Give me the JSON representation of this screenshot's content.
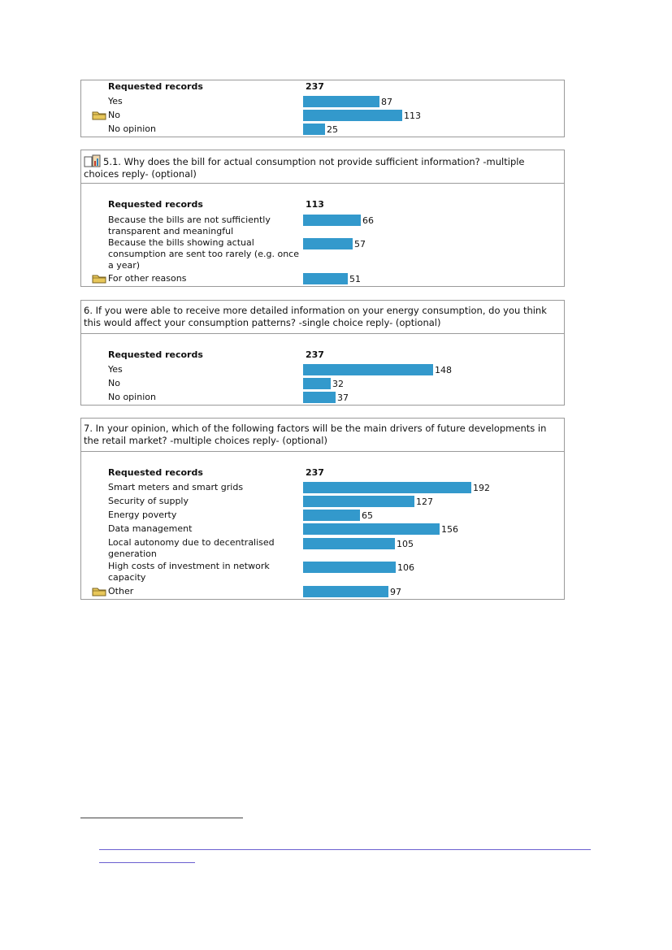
{
  "sections": [
    {
      "question": "",
      "requested_label": "Requested records",
      "requested_value": "237",
      "options": [
        {
          "label": "Yes",
          "value": "87",
          "count": 87
        },
        {
          "label": "No",
          "value": "113",
          "count": 113,
          "folder": true
        },
        {
          "label": "No opinion",
          "value": "25",
          "count": 25
        }
      ]
    },
    {
      "question": "5.1. Why does the bill for actual consumption not provide sufficient information? -multiple choices reply- (optional)",
      "requested_label": "Requested records",
      "requested_value": "113",
      "options": [
        {
          "label": "Because the bills are not sufficiently transparent and meaningful",
          "value": "66",
          "count": 66
        },
        {
          "label": "Because the bills showing actual consumption are sent too rarely (e.g. once a year)",
          "value": "57",
          "count": 57
        },
        {
          "label": "For other reasons",
          "value": "51",
          "count": 51,
          "folder": true
        }
      ]
    },
    {
      "question": "6. If you were able to receive more detailed information on your energy consumption, do you think this would affect your consumption patterns? -single choice reply- (optional)",
      "requested_label": "Requested records",
      "requested_value": "237",
      "options": [
        {
          "label": "Yes",
          "value": "148",
          "count": 148
        },
        {
          "label": "No",
          "value": "32",
          "count": 32
        },
        {
          "label": "No opinion",
          "value": "37",
          "count": 37
        }
      ]
    },
    {
      "question": "7. In your opinion, which of the following factors will be the main drivers of future developments in the retail market? -multiple choices reply- (optional)",
      "requested_label": "Requested records",
      "requested_value": "237",
      "options": [
        {
          "label": "Smart meters and smart grids",
          "value": "192",
          "count": 192
        },
        {
          "label": "Security of supply",
          "value": "127",
          "count": 127
        },
        {
          "label": "Energy poverty",
          "value": "65",
          "count": 65
        },
        {
          "label": "Data management",
          "value": "156",
          "count": 156
        },
        {
          "label": "Local autonomy due to decentralised generation",
          "value": "105",
          "count": 105
        },
        {
          "label": "High costs of investment in network capacity",
          "value": "106",
          "count": 106
        },
        {
          "label": "Other",
          "value": "97",
          "count": 97,
          "folder": true
        }
      ]
    }
  ],
  "colors": {
    "bar": "#3399cc",
    "border": "#9a9a9a",
    "link": "#6b5fd0"
  },
  "icons": {
    "folder": "folder-icon",
    "question": "chart-report-icon"
  }
}
